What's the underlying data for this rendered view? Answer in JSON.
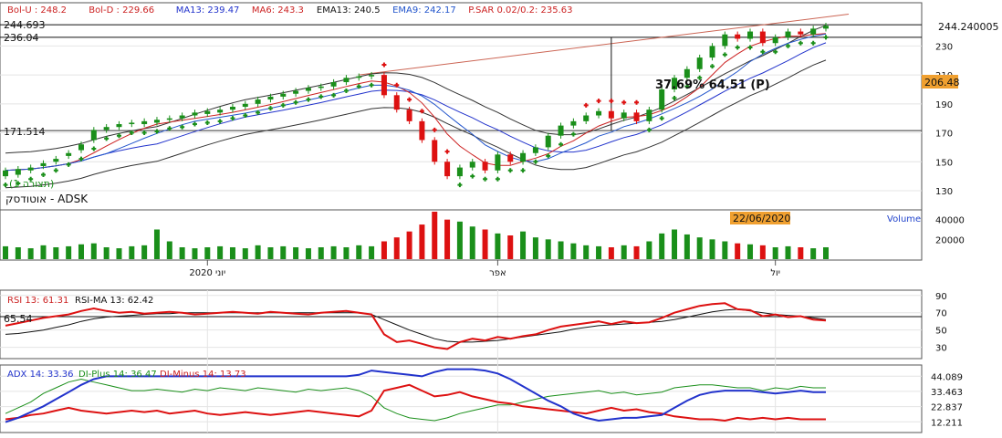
{
  "symbol_label": "אוטודסק - ADSK",
  "view_label": "(תצורה 1)",
  "date_tag": "22/06/2020",
  "price_tag": "206.48",
  "last_price_tag": "244.240005",
  "hline_labels": {
    "top": "244.693",
    "mid": "236.04",
    "low": "171.514"
  },
  "measure_label": "37.69%  64.51 (P)",
  "legend": [
    {
      "text": "Bol-U : 248.2",
      "color": "#cc2222"
    },
    {
      "text": "Bol-D : 229.66",
      "color": "#cc2222"
    },
    {
      "text": "MA13: 239.47",
      "color": "#2233cc"
    },
    {
      "text": "MA6: 243.3",
      "color": "#cc2222"
    },
    {
      "text": "EMA13: 240.5",
      "color": "#111111"
    },
    {
      "text": "EMA9: 242.17",
      "color": "#2255cc"
    },
    {
      "text": "P.SAR 0.02/0.2: 235.63",
      "color": "#cc2222"
    }
  ],
  "volume_label": "Volume",
  "rsi_legend": {
    "rsi": "RSI 13: 61.31",
    "ma": "RSI-MA 13: 62.42",
    "level": "65.54"
  },
  "adx_legend": {
    "adx": "ADX 14: 33.36",
    "plus": "DI-Plus 14: 36.47",
    "minus": "DI-Minus 14: 13.73"
  },
  "colors": {
    "up": "#1a8f1a",
    "down": "#dd1111",
    "sar_up": "#1a8f1a",
    "sar_down": "#dd1111",
    "tag_bg": "#f0a030",
    "adx": "#2233cc"
  },
  "chart_data": {
    "type": "candlestick",
    "price": {
      "yticks": [
        130,
        150,
        170,
        190,
        210,
        230
      ],
      "ylim": [
        118,
        258
      ],
      "series": [
        {
          "o": 140,
          "c": 144
        },
        {
          "o": 141,
          "c": 145
        },
        {
          "o": 144,
          "c": 146
        },
        {
          "o": 147,
          "c": 149
        },
        {
          "o": 150,
          "c": 152
        },
        {
          "o": 154,
          "c": 156
        },
        {
          "o": 158,
          "c": 162
        },
        {
          "o": 165,
          "c": 172
        },
        {
          "o": 172,
          "c": 174
        },
        {
          "o": 174,
          "c": 176
        },
        {
          "o": 176,
          "c": 177
        },
        {
          "o": 176,
          "c": 178
        },
        {
          "o": 177,
          "c": 179
        },
        {
          "o": 179,
          "c": 180
        },
        {
          "o": 180,
          "c": 182
        },
        {
          "o": 182,
          "c": 184
        },
        {
          "o": 183,
          "c": 185
        },
        {
          "o": 184,
          "c": 186
        },
        {
          "o": 186,
          "c": 188
        },
        {
          "o": 188,
          "c": 190
        },
        {
          "o": 190,
          "c": 193
        },
        {
          "o": 193,
          "c": 195
        },
        {
          "o": 195,
          "c": 197
        },
        {
          "o": 197,
          "c": 199
        },
        {
          "o": 199,
          "c": 201
        },
        {
          "o": 201,
          "c": 202
        },
        {
          "o": 202,
          "c": 205
        },
        {
          "o": 205,
          "c": 208
        },
        {
          "o": 208,
          "c": 209
        },
        {
          "o": 209,
          "c": 210
        },
        {
          "o": 210,
          "c": 196
        },
        {
          "o": 196,
          "c": 186
        },
        {
          "o": 186,
          "c": 178
        },
        {
          "o": 178,
          "c": 165
        },
        {
          "o": 165,
          "c": 150
        },
        {
          "o": 150,
          "c": 140
        },
        {
          "o": 140,
          "c": 146
        },
        {
          "o": 146,
          "c": 150
        },
        {
          "o": 150,
          "c": 144
        },
        {
          "o": 144,
          "c": 155
        },
        {
          "o": 155,
          "c": 150
        },
        {
          "o": 150,
          "c": 156
        },
        {
          "o": 156,
          "c": 160
        },
        {
          "o": 160,
          "c": 168
        },
        {
          "o": 168,
          "c": 175
        },
        {
          "o": 175,
          "c": 178
        },
        {
          "o": 178,
          "c": 182
        },
        {
          "o": 182,
          "c": 185
        },
        {
          "o": 185,
          "c": 180
        },
        {
          "o": 180,
          "c": 184
        },
        {
          "o": 184,
          "c": 178
        },
        {
          "o": 178,
          "c": 186
        },
        {
          "o": 186,
          "c": 200
        },
        {
          "o": 200,
          "c": 208
        },
        {
          "o": 208,
          "c": 214
        },
        {
          "o": 214,
          "c": 222
        },
        {
          "o": 222,
          "c": 230
        },
        {
          "o": 230,
          "c": 238
        },
        {
          "o": 238,
          "c": 235
        },
        {
          "o": 235,
          "c": 240
        },
        {
          "o": 240,
          "c": 232
        },
        {
          "o": 232,
          "c": 236
        },
        {
          "o": 236,
          "c": 240
        },
        {
          "o": 240,
          "c": 238
        },
        {
          "o": 238,
          "c": 242
        },
        {
          "o": 242,
          "c": 244
        }
      ]
    },
    "volume": {
      "yticks": [
        20000,
        40000
      ],
      "ylim": [
        0,
        48000
      ],
      "values": [
        13000,
        12000,
        11000,
        14000,
        12000,
        13000,
        15000,
        16000,
        12000,
        11000,
        13000,
        14000,
        30000,
        18000,
        12000,
        11000,
        12000,
        13000,
        12000,
        11000,
        14000,
        12000,
        13000,
        12000,
        11000,
        12000,
        13000,
        12000,
        14000,
        13000,
        18000,
        22000,
        28000,
        35000,
        48000,
        40000,
        38000,
        33000,
        30000,
        26000,
        24000,
        28000,
        22000,
        20000,
        18000,
        16000,
        14000,
        13000,
        12000,
        14000,
        13000,
        18000,
        26000,
        30000,
        25000,
        22000,
        20000,
        18000,
        16000,
        15000,
        14000,
        12000,
        13000,
        12000,
        11000,
        12000
      ]
    },
    "rsi": {
      "yticks": [
        30,
        50,
        70,
        90
      ],
      "ylim": [
        18,
        94
      ],
      "level": 65.54,
      "rsi": [
        55,
        58,
        61,
        64,
        66,
        68,
        72,
        75,
        72,
        70,
        71,
        69,
        70,
        71,
        70,
        68,
        69,
        70,
        71,
        70,
        69,
        71,
        70,
        69,
        68,
        70,
        71,
        72,
        70,
        68,
        45,
        36,
        38,
        34,
        30,
        28,
        36,
        40,
        38,
        42,
        40,
        43,
        45,
        50,
        54,
        56,
        58,
        60,
        57,
        60,
        58,
        59,
        64,
        70,
        74,
        78,
        80,
        81,
        74,
        73,
        66,
        68,
        65,
        66,
        62,
        61
      ],
      "ma": [
        45,
        46,
        48,
        50,
        53,
        56,
        60,
        63,
        65,
        66,
        67,
        68,
        69,
        69,
        70,
        70,
        70,
        70,
        70,
        70,
        70,
        70,
        70,
        70,
        70,
        70,
        70,
        70,
        70,
        68,
        62,
        56,
        50,
        45,
        40,
        37,
        36,
        36,
        37,
        38,
        40,
        42,
        44,
        46,
        48,
        51,
        53,
        55,
        56,
        57,
        58,
        59,
        60,
        62,
        65,
        68,
        71,
        73,
        74,
        72,
        70,
        68,
        67,
        66,
        64,
        62
      ]
    },
    "adx": {
      "yticks": [
        12.211,
        22.837,
        33.463,
        44.089
      ],
      "ylim": [
        6,
        50
      ],
      "adx": [
        12,
        15,
        19,
        23,
        28,
        33,
        38,
        42,
        44,
        44,
        44,
        44,
        44,
        44,
        44,
        44,
        44,
        44,
        44,
        44,
        44,
        44,
        44,
        44,
        44,
        44,
        44,
        44,
        45,
        48,
        47,
        46,
        45,
        44,
        47,
        49,
        49,
        49,
        48,
        46,
        42,
        37,
        32,
        27,
        23,
        18,
        15,
        13,
        14,
        15,
        15,
        16,
        17,
        22,
        27,
        31,
        33,
        34,
        34,
        34,
        33,
        32,
        33,
        34,
        33,
        33
      ],
      "plus": [
        18,
        22,
        26,
        32,
        36,
        40,
        42,
        40,
        38,
        36,
        34,
        34,
        35,
        34,
        33,
        35,
        34,
        36,
        35,
        34,
        36,
        35,
        34,
        33,
        35,
        34,
        35,
        36,
        34,
        30,
        22,
        18,
        15,
        14,
        13,
        15,
        18,
        20,
        22,
        24,
        24,
        26,
        28,
        30,
        31,
        32,
        33,
        34,
        32,
        33,
        31,
        32,
        33,
        36,
        37,
        38,
        38,
        37,
        36,
        36,
        34,
        36,
        35,
        37,
        36,
        36
      ],
      "minus": [
        14,
        15,
        17,
        18,
        20,
        22,
        20,
        19,
        18,
        19,
        20,
        19,
        20,
        18,
        19,
        20,
        18,
        17,
        18,
        19,
        18,
        17,
        18,
        19,
        20,
        19,
        18,
        17,
        16,
        20,
        34,
        36,
        38,
        34,
        30,
        31,
        33,
        30,
        28,
        26,
        25,
        23,
        22,
        21,
        20,
        19,
        18,
        20,
        22,
        20,
        21,
        19,
        18,
        16,
        15,
        14,
        14,
        13,
        15,
        14,
        15,
        14,
        15,
        14,
        14,
        14
      ]
    },
    "xlabels": [
      {
        "index": 16,
        "text": "יוני 2020"
      },
      {
        "index": 39,
        "text": "אפר"
      },
      {
        "index": 61,
        "text": "יול"
      }
    ]
  }
}
